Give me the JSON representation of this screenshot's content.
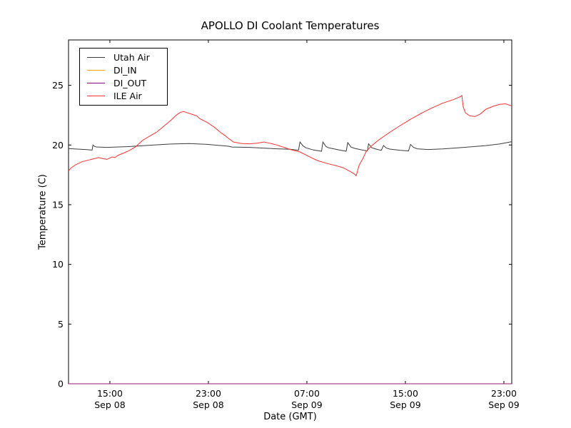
{
  "figure": {
    "background": "#ffffff",
    "frame_color": "#000000"
  },
  "chart_data": {
    "type": "line",
    "title": "APOLLO DI Coolant Temperatures",
    "xlabel": "Date (GMT)",
    "ylabel": "Temperature (C)",
    "grid": false,
    "legend_position": "upper left",
    "xlim_hours": [
      0,
      36
    ],
    "ylim": [
      0,
      28.8
    ],
    "y_ticks": [
      "0",
      "5",
      "10",
      "15",
      "20",
      "25"
    ],
    "x_ticks": [
      {
        "hours": 3.36,
        "time": "15:00",
        "date": "Sep 08"
      },
      {
        "hours": 11.36,
        "time": "23:00",
        "date": "Sep 08"
      },
      {
        "hours": 19.36,
        "time": "07:00",
        "date": "Sep 09"
      },
      {
        "hours": 27.36,
        "time": "15:00",
        "date": "Sep 09"
      },
      {
        "hours": 35.36,
        "time": "23:00",
        "date": "Sep 09"
      }
    ],
    "series": [
      {
        "name": "Utah Air",
        "color": "#3c3c3c",
        "points": [
          [
            0,
            19.7
          ],
          [
            0.7,
            19.66
          ],
          [
            1.4,
            19.62
          ],
          [
            1.8,
            19.58
          ],
          [
            1.92,
            19.58
          ],
          [
            1.98,
            20.0
          ],
          [
            2.12,
            19.88
          ],
          [
            2.25,
            19.84
          ],
          [
            3.1,
            19.8
          ],
          [
            4.9,
            19.87
          ],
          [
            6.6,
            19.98
          ],
          [
            8.3,
            20.08
          ],
          [
            9.8,
            20.12
          ],
          [
            11.25,
            20.05
          ],
          [
            13.0,
            19.9
          ],
          [
            13.28,
            19.83
          ],
          [
            14.7,
            19.8
          ],
          [
            16.5,
            19.7
          ],
          [
            18.0,
            19.64
          ],
          [
            18.68,
            19.56
          ],
          [
            18.8,
            20.25
          ],
          [
            19.05,
            19.92
          ],
          [
            19.3,
            19.76
          ],
          [
            19.9,
            19.58
          ],
          [
            20.55,
            19.48
          ],
          [
            20.66,
            20.25
          ],
          [
            20.92,
            19.86
          ],
          [
            21.15,
            19.76
          ],
          [
            22.0,
            19.58
          ],
          [
            22.55,
            19.48
          ],
          [
            22.68,
            20.2
          ],
          [
            22.95,
            19.82
          ],
          [
            23.25,
            19.72
          ],
          [
            24.0,
            19.55
          ],
          [
            24.28,
            19.5
          ],
          [
            24.37,
            20.1
          ],
          [
            24.62,
            19.78
          ],
          [
            24.9,
            19.68
          ],
          [
            25.4,
            19.55
          ],
          [
            25.58,
            19.95
          ],
          [
            25.82,
            19.74
          ],
          [
            26.1,
            19.66
          ],
          [
            26.9,
            19.56
          ],
          [
            27.62,
            19.5
          ],
          [
            27.78,
            20.05
          ],
          [
            28.02,
            19.8
          ],
          [
            28.32,
            19.68
          ],
          [
            29.2,
            19.62
          ],
          [
            30.4,
            19.67
          ],
          [
            32.1,
            19.8
          ],
          [
            33.9,
            19.95
          ],
          [
            35.0,
            20.08
          ],
          [
            36,
            20.28
          ]
        ]
      },
      {
        "name": "DI_IN",
        "color": "#ffa500",
        "points": [
          [
            0,
            0
          ],
          [
            36,
            0
          ]
        ]
      },
      {
        "name": "DI_OUT",
        "color": "#800080",
        "points": [
          [
            0,
            0
          ],
          [
            36,
            0
          ]
        ]
      },
      {
        "name": "ILE Air",
        "color": "#f73232",
        "points": [
          [
            0,
            17.85
          ],
          [
            0.23,
            18.1
          ],
          [
            0.58,
            18.35
          ],
          [
            1.1,
            18.6
          ],
          [
            1.68,
            18.75
          ],
          [
            2.43,
            18.95
          ],
          [
            2.84,
            18.85
          ],
          [
            3.13,
            18.8
          ],
          [
            3.54,
            19.0
          ],
          [
            3.77,
            18.95
          ],
          [
            4.06,
            19.15
          ],
          [
            4.41,
            19.3
          ],
          [
            4.87,
            19.5
          ],
          [
            5.45,
            19.85
          ],
          [
            6.03,
            20.4
          ],
          [
            6.61,
            20.75
          ],
          [
            7.19,
            21.1
          ],
          [
            7.77,
            21.6
          ],
          [
            8.35,
            22.1
          ],
          [
            8.75,
            22.5
          ],
          [
            9.1,
            22.75
          ],
          [
            9.35,
            22.8
          ],
          [
            9.6,
            22.72
          ],
          [
            10.1,
            22.55
          ],
          [
            10.4,
            22.45
          ],
          [
            10.67,
            22.2
          ],
          [
            11.25,
            21.9
          ],
          [
            11.83,
            21.5
          ],
          [
            12.41,
            21.0
          ],
          [
            12.7,
            20.8
          ],
          [
            13.0,
            20.55
          ],
          [
            13.4,
            20.25
          ],
          [
            14.1,
            20.12
          ],
          [
            14.7,
            20.1
          ],
          [
            15.3,
            20.15
          ],
          [
            15.88,
            20.25
          ],
          [
            16.35,
            20.15
          ],
          [
            16.93,
            20.0
          ],
          [
            17.5,
            19.8
          ],
          [
            18.1,
            19.6
          ],
          [
            18.8,
            19.42
          ],
          [
            19.5,
            19.05
          ],
          [
            20.2,
            18.7
          ],
          [
            21.0,
            18.45
          ],
          [
            21.7,
            18.28
          ],
          [
            22.3,
            18.1
          ],
          [
            22.84,
            17.8
          ],
          [
            23.25,
            17.55
          ],
          [
            23.36,
            17.42
          ],
          [
            23.6,
            18.3
          ],
          [
            23.9,
            18.85
          ],
          [
            24.17,
            19.45
          ],
          [
            24.58,
            19.9
          ],
          [
            25.16,
            20.4
          ],
          [
            26.0,
            21.0
          ],
          [
            26.9,
            21.6
          ],
          [
            27.77,
            22.15
          ],
          [
            28.64,
            22.65
          ],
          [
            29.5,
            23.1
          ],
          [
            30.38,
            23.5
          ],
          [
            31.25,
            23.8
          ],
          [
            31.83,
            24.05
          ],
          [
            31.95,
            24.15
          ],
          [
            32.06,
            23.2
          ],
          [
            32.23,
            22.7
          ],
          [
            32.58,
            22.45
          ],
          [
            33.0,
            22.38
          ],
          [
            33.45,
            22.6
          ],
          [
            33.9,
            23.0
          ],
          [
            34.5,
            23.25
          ],
          [
            35.0,
            23.4
          ],
          [
            35.48,
            23.45
          ],
          [
            35.77,
            23.35
          ],
          [
            36,
            23.28
          ]
        ]
      }
    ]
  }
}
